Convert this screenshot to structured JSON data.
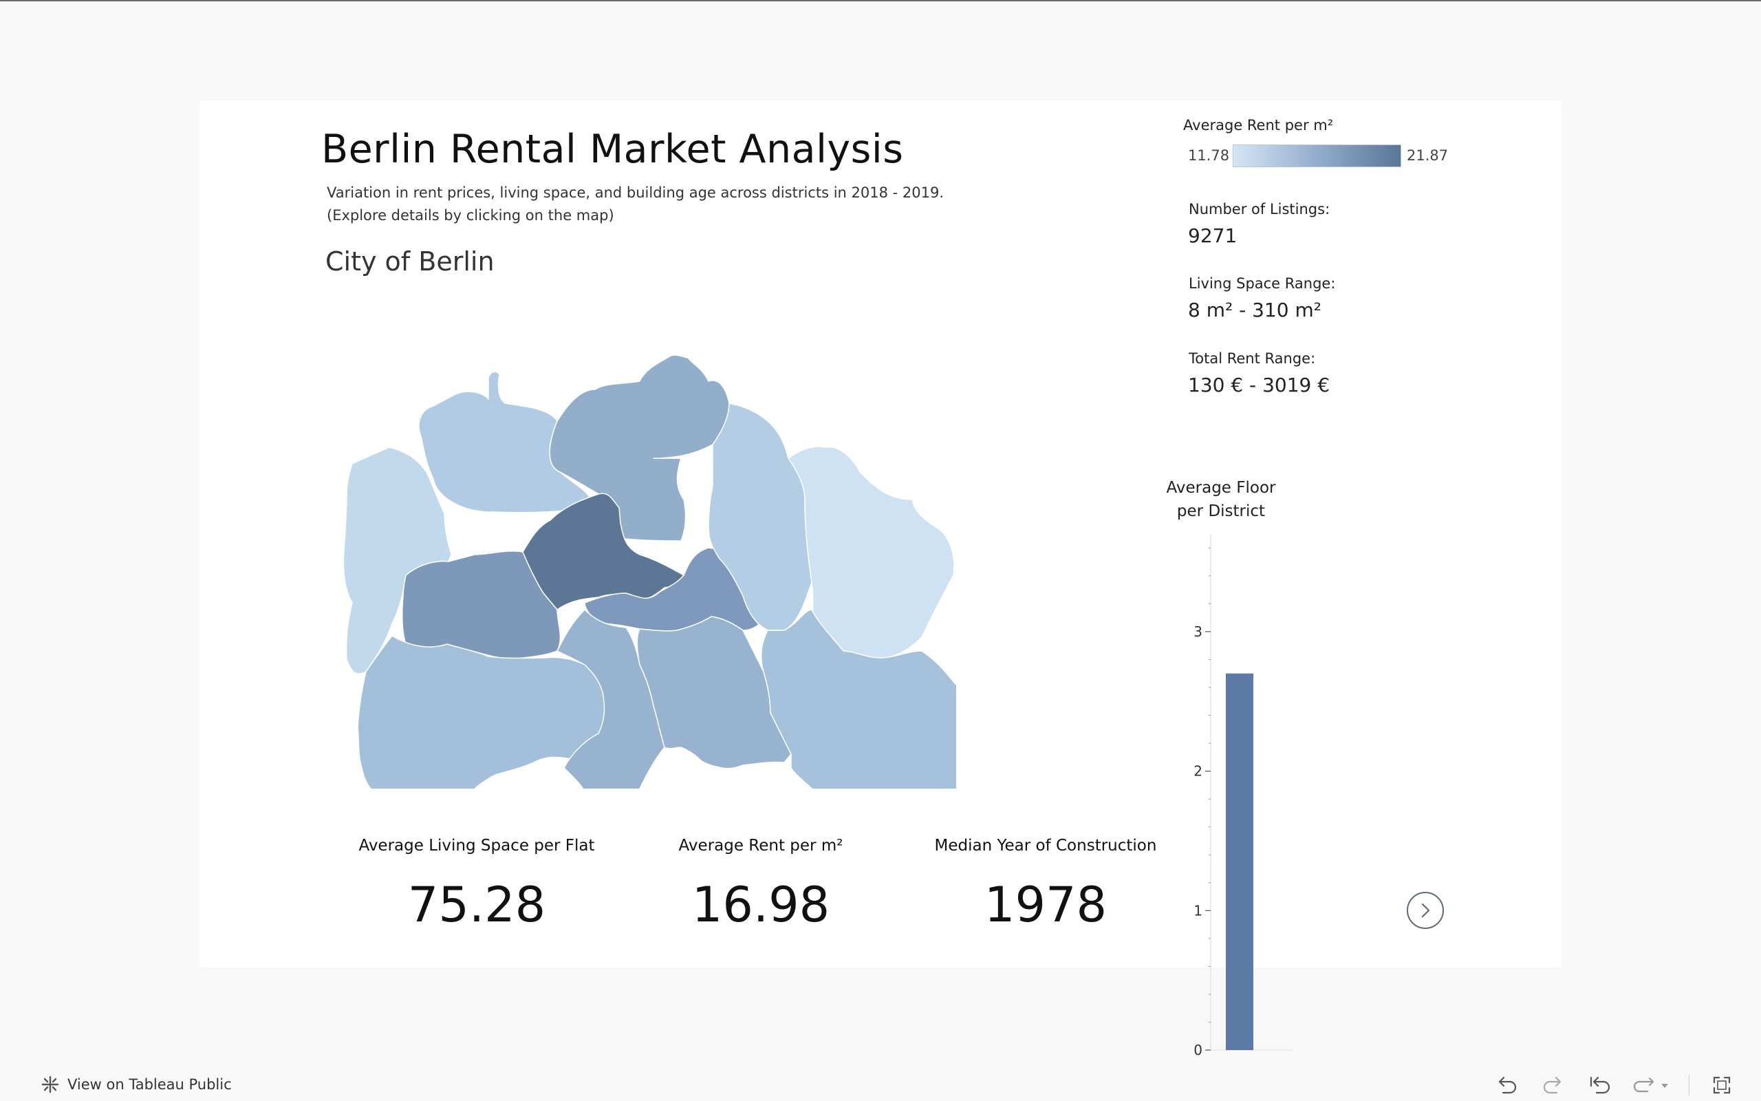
{
  "dashboard": {
    "title": "Berlin Rental Market Analysis",
    "subtitle_line1": "Variation in rent prices, living space, and building age across districts in 2018 - 2019.",
    "subtitle_line2": "(Explore details by clicking on the map)",
    "map_title": "City of Berlin"
  },
  "legend": {
    "title": "Average Rent per m²",
    "min": "11.78",
    "max": "21.87",
    "colors": {
      "low": "#d4e6f5",
      "mid": "#8da7c8",
      "high": "#5a7697"
    }
  },
  "stats": {
    "listings_label": "Number of Listings:",
    "listings_value": "9271",
    "living_space_label": "Living Space Range:",
    "living_space_value": "8 m² - 310 m²",
    "rent_label": "Total Rent Range:",
    "rent_value": "130 € - 3019 €"
  },
  "kpis": [
    {
      "label": "Average Living Space per Flat",
      "value": "75.28"
    },
    {
      "label": "Average Rent per m²",
      "value": "16.98"
    },
    {
      "label": "Median Year of Construction",
      "value": "1978"
    }
  ],
  "chart_data": {
    "type": "bar",
    "title": "Average Floor per District",
    "title_line1": "Average Floor",
    "title_line2": "per District",
    "categories": [
      ""
    ],
    "values": [
      2.7
    ],
    "ylim": [
      0,
      3.7
    ],
    "yticks": [
      "0",
      "1",
      "2",
      "3"
    ],
    "bar_color": "#5b7aa5",
    "grid": false
  },
  "map": {
    "district_colors": {
      "mitte": "#5e7696",
      "friedrichshain_kreuzberg": "#7e99bb",
      "pankow": "#93aecb",
      "charlottenburg_wilmersdorf": "#7e98ba",
      "spandau": "#c2d9ec",
      "steglitz_zehlendorf": "#a3bfd9",
      "tempelhof_schoeneberg": "#98b3cf",
      "neukoelln": "#98b3cf",
      "treptow_koepenick": "#a6c1db",
      "marzahn_hellersdorf": "#cfe2f3",
      "lichtenberg": "#b3cde4",
      "reinickendorf": "#b0cbe3"
    }
  },
  "footer": {
    "view_on_tableau": "View on Tableau Public"
  },
  "toolbar": {
    "undo": "undo-icon",
    "redo": "redo-icon",
    "revert": "revert-icon",
    "share": "share-icon",
    "fullscreen": "fullscreen-icon"
  }
}
